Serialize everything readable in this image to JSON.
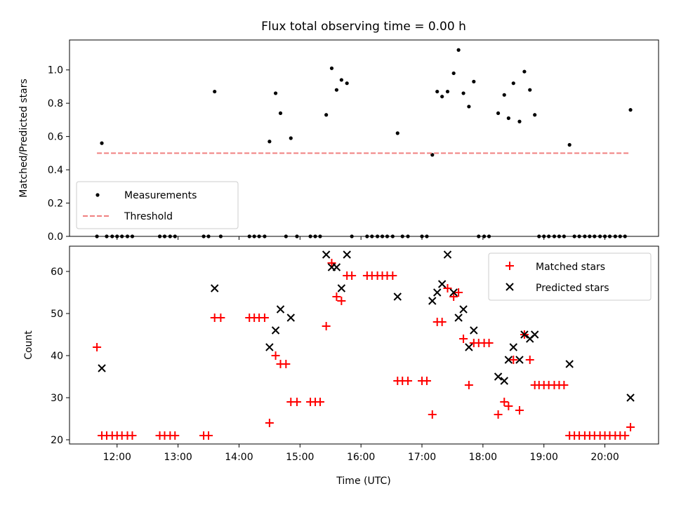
{
  "figure": {
    "title": "Flux total observing time = 0.00 h"
  },
  "chart_data": [
    {
      "type": "scatter",
      "panel": "top",
      "title": "Flux total observing time = 0.00 h",
      "xlabel": "",
      "ylabel": "Matched/Predicted stars",
      "xlim": [
        11.22,
        20.88
      ],
      "ylim": [
        0,
        1.18
      ],
      "x_ticks": [
        "12:00",
        "13:00",
        "14:00",
        "15:00",
        "16:00",
        "17:00",
        "18:00",
        "19:00",
        "20:00"
      ],
      "y_ticks": [
        "0.0",
        "0.2",
        "0.4",
        "0.6",
        "0.8",
        "1.0"
      ],
      "grid": false,
      "legend": "lower-left",
      "series": [
        {
          "name": "Measurements",
          "color": "#000000",
          "x": [
            11.67,
            11.75,
            11.83,
            11.92,
            12.0,
            12.08,
            12.17,
            12.25,
            12.7,
            12.78,
            12.87,
            12.95,
            13.42,
            13.5,
            13.6,
            13.7,
            14.17,
            14.25,
            14.33,
            14.42,
            14.5,
            14.6,
            14.68,
            14.77,
            14.85,
            14.95,
            15.17,
            15.25,
            15.33,
            15.43,
            15.52,
            15.6,
            15.68,
            15.77,
            15.85,
            16.1,
            16.18,
            16.27,
            16.35,
            16.43,
            16.52,
            16.6,
            16.68,
            16.77,
            17.0,
            17.08,
            17.17,
            17.25,
            17.33,
            17.42,
            17.52,
            17.6,
            17.68,
            17.77,
            17.85,
            17.93,
            18.02,
            18.1,
            18.25,
            18.35,
            18.42,
            18.5,
            18.6,
            18.68,
            18.77,
            18.85,
            18.92,
            19.0,
            19.08,
            19.17,
            19.25,
            19.33,
            19.42,
            19.5,
            19.58,
            19.67,
            19.75,
            19.83,
            19.92,
            20.0,
            20.08,
            20.17,
            20.25,
            20.33,
            20.42
          ],
          "y": [
            0,
            0.56,
            0,
            0,
            0,
            0,
            0,
            0,
            0,
            0,
            0,
            0,
            0,
            0,
            0.87,
            0,
            0,
            0,
            0,
            0,
            0.57,
            0.86,
            0.74,
            0,
            0.59,
            0,
            0,
            0,
            0,
            0.73,
            1.01,
            0.88,
            0.94,
            0.92,
            0,
            0,
            0,
            0,
            0,
            0,
            0,
            0.62,
            0,
            0,
            0,
            0,
            0.49,
            0.87,
            0.84,
            0.87,
            0.98,
            1.12,
            0.86,
            0.78,
            0.93,
            0,
            0,
            0,
            0.74,
            0.85,
            0.71,
            0.92,
            0.69,
            0.99,
            0.88,
            0.73,
            0,
            0,
            0,
            0,
            0,
            0,
            0.55,
            0,
            0,
            0,
            0,
            0,
            0,
            0,
            0,
            0,
            0,
            0,
            0.76
          ]
        },
        {
          "name": "Threshold",
          "color": "#f08080",
          "style": "dashed",
          "x": [
            11.67,
            20.42
          ],
          "y": [
            0.5,
            0.5
          ]
        }
      ]
    },
    {
      "type": "scatter",
      "panel": "bottom",
      "xlabel": "Time (UTC)",
      "ylabel": "Count",
      "xlim": [
        11.22,
        20.88
      ],
      "ylim": [
        19,
        66
      ],
      "x_ticks": [
        "12:00",
        "13:00",
        "14:00",
        "15:00",
        "16:00",
        "17:00",
        "18:00",
        "19:00",
        "20:00"
      ],
      "y_ticks": [
        "20",
        "30",
        "40",
        "50",
        "60"
      ],
      "grid": false,
      "legend": "upper-right",
      "series": [
        {
          "name": "Matched stars",
          "color": "#ff0000",
          "marker": "plus",
          "x": [
            11.67,
            11.75,
            11.83,
            11.92,
            12.0,
            12.08,
            12.17,
            12.25,
            12.7,
            12.78,
            12.87,
            12.95,
            13.42,
            13.5,
            13.6,
            13.7,
            14.17,
            14.25,
            14.33,
            14.42,
            14.5,
            14.6,
            14.68,
            14.77,
            14.85,
            14.95,
            15.17,
            15.25,
            15.33,
            15.43,
            15.52,
            15.6,
            15.68,
            15.77,
            15.85,
            16.1,
            16.18,
            16.27,
            16.35,
            16.43,
            16.52,
            16.6,
            16.68,
            16.77,
            17.0,
            17.08,
            17.17,
            17.25,
            17.33,
            17.42,
            17.52,
            17.6,
            17.68,
            17.77,
            17.85,
            17.93,
            18.02,
            18.1,
            18.25,
            18.35,
            18.42,
            18.5,
            18.6,
            18.68,
            18.77,
            18.85,
            18.92,
            19.0,
            19.08,
            19.17,
            19.25,
            19.33,
            19.42,
            19.5,
            19.58,
            19.67,
            19.75,
            19.83,
            19.92,
            20.0,
            20.08,
            20.17,
            20.25,
            20.33,
            20.42
          ],
          "y": [
            42,
            21,
            21,
            21,
            21,
            21,
            21,
            21,
            21,
            21,
            21,
            21,
            21,
            21,
            49,
            49,
            49,
            49,
            49,
            49,
            24,
            40,
            38,
            38,
            29,
            29,
            29,
            29,
            29,
            47,
            62,
            54,
            53,
            59,
            59,
            59,
            59,
            59,
            59,
            59,
            59,
            34,
            34,
            34,
            34,
            34,
            26,
            48,
            48,
            56,
            54,
            55,
            44,
            33,
            43,
            43,
            43,
            43,
            26,
            29,
            28,
            39,
            27,
            45,
            39,
            33,
            33,
            33,
            33,
            33,
            33,
            33,
            21,
            21,
            21,
            21,
            21,
            21,
            21,
            21,
            21,
            21,
            21,
            21,
            23
          ]
        },
        {
          "name": "Predicted stars",
          "color": "#000000",
          "marker": "x",
          "x": [
            11.75,
            13.6,
            14.5,
            14.6,
            14.68,
            14.85,
            15.43,
            15.52,
            15.6,
            15.68,
            15.77,
            16.6,
            17.17,
            17.25,
            17.33,
            17.42,
            17.52,
            17.6,
            17.68,
            17.77,
            17.85,
            18.25,
            18.35,
            18.42,
            18.5,
            18.6,
            18.68,
            18.77,
            18.85,
            19.42,
            20.42
          ],
          "y": [
            37,
            56,
            42,
            46,
            51,
            49,
            64,
            61,
            61,
            56,
            64,
            54,
            53,
            55,
            57,
            64,
            55,
            49,
            51,
            42,
            46,
            35,
            34,
            39,
            42,
            39,
            45,
            44,
            45,
            38,
            30
          ]
        }
      ]
    }
  ]
}
